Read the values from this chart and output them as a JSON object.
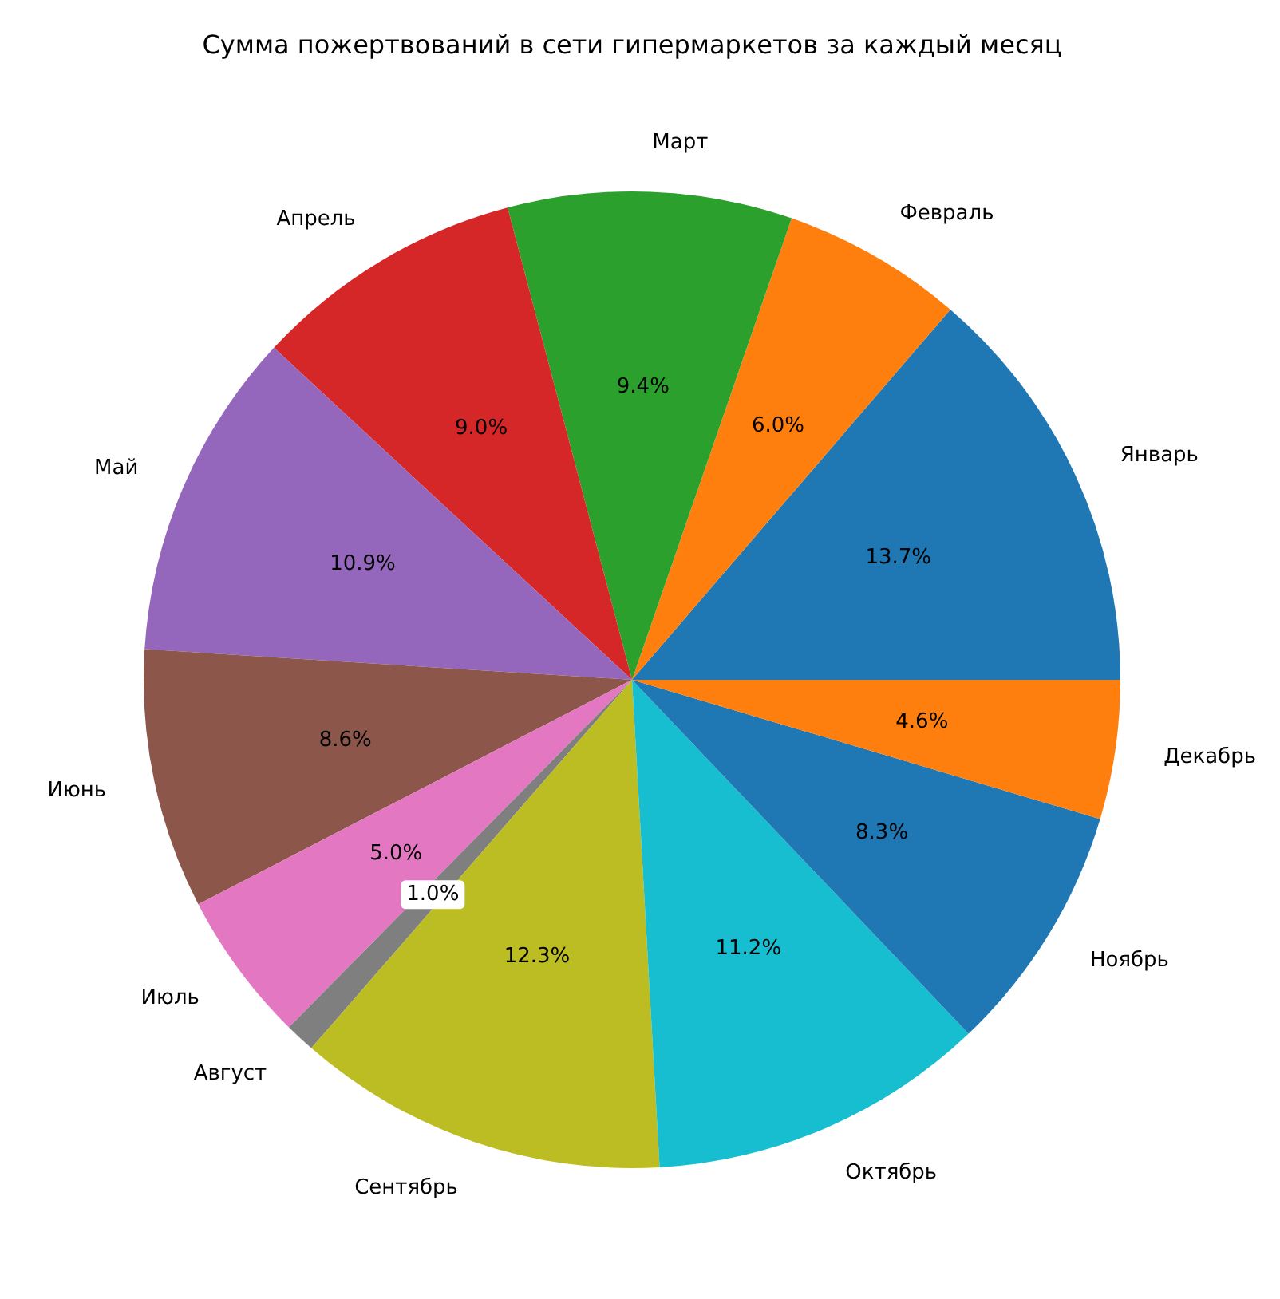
{
  "chart_data": {
    "type": "pie",
    "title": "Сумма пожертвований в сети гипермаркетов за каждый месяц",
    "categories": [
      "Январь",
      "Февраль",
      "Март",
      "Апрель",
      "Май",
      "Июнь",
      "Июль",
      "Август",
      "Сентябрь",
      "Октябрь",
      "Ноябрь",
      "Декабрь"
    ],
    "values": [
      13.7,
      6.0,
      9.4,
      9.0,
      10.9,
      8.6,
      5.0,
      1.0,
      12.3,
      11.2,
      8.3,
      4.6
    ],
    "value_labels": [
      "13.7%",
      "6.0%",
      "9.4%",
      "9.0%",
      "10.9%",
      "8.6%",
      "5.0%",
      "1.0%",
      "12.3%",
      "11.2%",
      "8.3%",
      "4.6%"
    ],
    "colors": [
      "#1f77b4",
      "#ff7f0e",
      "#2ca02c",
      "#d62728",
      "#9467bd",
      "#8c564b",
      "#e377c2",
      "#7f7f7f",
      "#bcbd22",
      "#17becf",
      "#1f77b4",
      "#ff7f0e"
    ]
  }
}
